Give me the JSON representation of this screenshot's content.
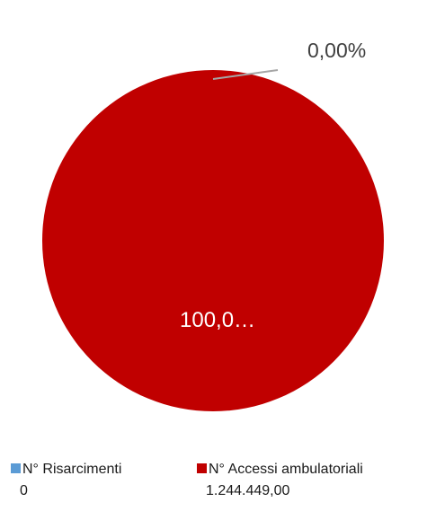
{
  "chart_data": {
    "type": "pie",
    "slices": [
      {
        "name": "N° Risarcimenti",
        "value_text": "0",
        "value": 0,
        "percent_label": "0,00%",
        "color": "#5b9bd5"
      },
      {
        "name": "N° Accessi ambulatoriali",
        "value_text": "1.244.449,00",
        "value": 1244449,
        "percent_label": "100,0…",
        "color": "#c00000"
      }
    ],
    "leader_line_color": "#a6a6a6",
    "legend_position": "bottom"
  }
}
